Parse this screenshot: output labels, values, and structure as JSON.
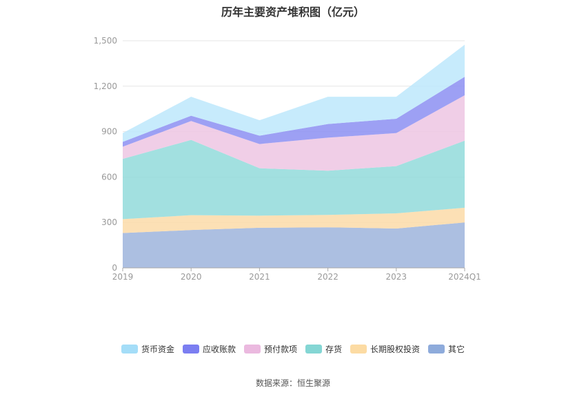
{
  "title": "历年主要资产堆积图（亿元）",
  "source": "数据来源：恒生聚源",
  "chart_data": {
    "type": "area",
    "stacked": true,
    "categories": [
      "2019",
      "2020",
      "2021",
      "2022",
      "2023",
      "2024Q1"
    ],
    "ylim": [
      0,
      1500
    ],
    "yticks": [
      "0",
      "300",
      "600",
      "900",
      "1,200",
      "1,500"
    ],
    "grid": true,
    "legend_position": "bottom",
    "series": [
      {
        "name": "其它",
        "color": "#9db4dc",
        "values": [
          230,
          250,
          265,
          268,
          260,
          300
        ]
      },
      {
        "name": "长期股权投资",
        "color": "#fcdba8",
        "values": [
          92,
          98,
          80,
          82,
          100,
          97
        ]
      },
      {
        "name": "存货",
        "color": "#92dbda",
        "values": [
          398,
          497,
          313,
          292,
          312,
          443
        ]
      },
      {
        "name": "预付款项",
        "color": "#edc6e3",
        "values": [
          80,
          125,
          160,
          218,
          218,
          300
        ]
      },
      {
        "name": "应收账款",
        "color": "#8c8ff2",
        "values": [
          32,
          35,
          55,
          90,
          95,
          122
        ]
      },
      {
        "name": "货币资金",
        "color": "#bde7fb",
        "values": [
          58,
          125,
          102,
          180,
          145,
          212
        ]
      }
    ]
  },
  "legend": [
    {
      "label": "货币资金",
      "color": "#a4ddf8"
    },
    {
      "label": "应收账款",
      "color": "#7b7ef1"
    },
    {
      "label": "预付款项",
      "color": "#ebb9df"
    },
    {
      "label": "存货",
      "color": "#84d6d4"
    },
    {
      "label": "长期股权投资",
      "color": "#fcdba3"
    },
    {
      "label": "其它",
      "color": "#8eabdb"
    }
  ]
}
